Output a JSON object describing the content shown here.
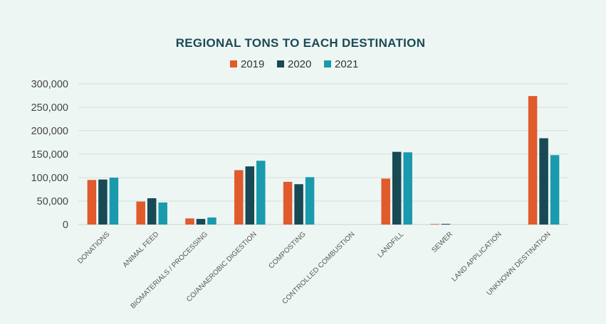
{
  "chart_data": {
    "type": "bar",
    "title": "REGIONAL TONS TO EACH DESTINATION",
    "xlabel": "",
    "ylabel": "",
    "ylim": [
      0,
      300000
    ],
    "yticks": [
      0,
      50000,
      100000,
      150000,
      200000,
      250000,
      300000
    ],
    "ytick_labels": [
      "0",
      "50,000",
      "100,000",
      "150,000",
      "200,000",
      "250,000",
      "300,000"
    ],
    "grid": true,
    "legend_position": "top-center",
    "categories": [
      "DONATIONS",
      "ANIMAL FEED",
      "BIOMATERIALS / PROCESSING",
      "CO/ANAEROBIC DIGESTION",
      "COMPOSTING",
      "CONTROLLED COMBUSTION",
      "LANDFILL",
      "SEWER",
      "LAND APPLICATION",
      "UNKNOWN DESTINATION"
    ],
    "series": [
      {
        "name": "2019",
        "color": "#e05a2b",
        "values": [
          95000,
          49000,
          13000,
          116000,
          91000,
          0,
          98000,
          1000,
          0,
          274000
        ]
      },
      {
        "name": "2020",
        "color": "#174a55",
        "values": [
          96000,
          56000,
          12000,
          124000,
          86000,
          0,
          155000,
          1500,
          0,
          184000
        ]
      },
      {
        "name": "2021",
        "color": "#1a9aad",
        "values": [
          100000,
          47000,
          15000,
          136000,
          101000,
          0,
          154000,
          0,
          0,
          148000
        ]
      }
    ]
  }
}
